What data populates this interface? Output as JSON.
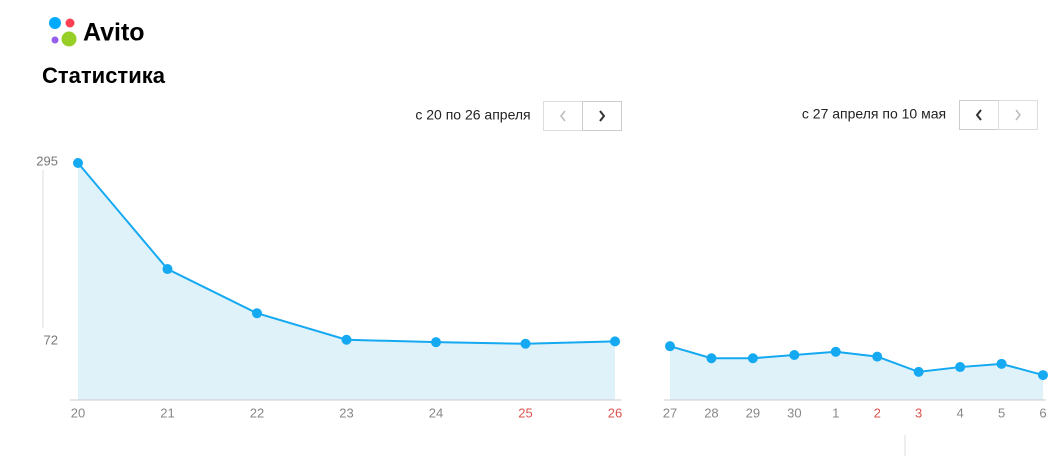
{
  "header": {
    "logo": "Avito",
    "title": "Статистика"
  },
  "chart_data": [
    {
      "type": "area",
      "subtitle": "с 20 по 26 апреля",
      "categories": [
        "20",
        "21",
        "22",
        "23",
        "24",
        "25",
        "26"
      ],
      "values": [
        295,
        163,
        108,
        75,
        72,
        70,
        73
      ],
      "label_colors": [
        "#888888",
        "#888888",
        "#888888",
        "#888888",
        "#888888",
        "#d9534f",
        "#d9534f"
      ],
      "color": "#14a9f0",
      "fill": "#dff2fa",
      "ylim": [
        0,
        295
      ],
      "yticks": [
        72,
        295
      ]
    },
    {
      "type": "area",
      "subtitle": "с 27 апреля по 10 мая",
      "categories": [
        "27",
        "28",
        "29",
        "30",
        "1",
        "2",
        "3",
        "4",
        "5",
        "6"
      ],
      "values": [
        67,
        52,
        52,
        56,
        60,
        54,
        35,
        41,
        45,
        31
      ],
      "label_colors": [
        "#888888",
        "#888888",
        "#888888",
        "#888888",
        "#888888",
        "#d9534f",
        "#d9534f",
        "#888888",
        "#888888",
        "#888888"
      ],
      "color": "#14a9f0",
      "fill": "#dff2fa",
      "ylim": [
        0,
        295
      ]
    }
  ]
}
